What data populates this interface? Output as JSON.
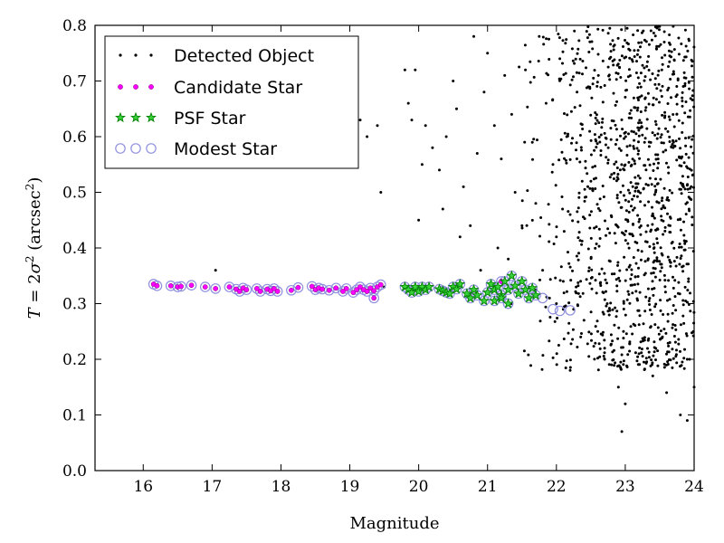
{
  "chart_data": {
    "type": "scatter",
    "title": "",
    "xlabel": "Magnitude",
    "ylabel_parts": {
      "lhs": "T",
      "eq": " = 2",
      "sigma": "σ",
      "sq": "2",
      "unit_open": " (arcsec",
      "unit_sq": "2",
      "unit_close": ")"
    },
    "xlim": [
      15.3,
      24
    ],
    "ylim": [
      0.0,
      0.8
    ],
    "xticks": [
      "16",
      "17",
      "18",
      "19",
      "20",
      "21",
      "22",
      "23",
      "24"
    ],
    "yticks": [
      "0.0",
      "0.1",
      "0.2",
      "0.3",
      "0.4",
      "0.5",
      "0.6",
      "0.7",
      "0.8"
    ],
    "legend_position": "upper-left",
    "colors": {
      "detected": "#000000",
      "candidate": "#ff00ff",
      "psf": "#008000",
      "modest": "#8f8fdf"
    },
    "series": [
      {
        "name": "Detected Object",
        "marker": "dot",
        "color": "#000000",
        "generated_count": 1200
      },
      {
        "name": "Candidate Star",
        "marker": "circle",
        "color": "#ff00ff"
      },
      {
        "name": "PSF Star",
        "marker": "star",
        "color": "#008000"
      },
      {
        "name": "Modest Star",
        "marker": "open-circle",
        "color": "#8f8fdf"
      }
    ],
    "detected_sparse_points": [
      [
        17.05,
        0.36
      ],
      [
        21.35,
        0.3
      ],
      [
        22.0,
        0.3
      ],
      [
        22.1,
        0.29
      ],
      [
        22.2,
        0.18
      ],
      [
        19.15,
        0.63
      ],
      [
        19.25,
        0.6
      ],
      [
        19.4,
        0.62
      ],
      [
        19.45,
        0.5
      ],
      [
        19.5,
        0.33
      ],
      [
        19.8,
        0.72
      ],
      [
        19.85,
        0.66
      ],
      [
        19.9,
        0.63
      ],
      [
        19.95,
        0.72
      ],
      [
        20.0,
        0.45
      ],
      [
        20.05,
        0.55
      ],
      [
        20.1,
        0.62
      ],
      [
        20.2,
        0.58
      ],
      [
        20.3,
        0.54
      ],
      [
        20.35,
        0.47
      ],
      [
        20.4,
        0.6
      ],
      [
        20.5,
        0.7
      ],
      [
        20.55,
        0.65
      ],
      [
        20.6,
        0.42
      ],
      [
        20.65,
        0.51
      ],
      [
        20.75,
        0.44
      ],
      [
        20.8,
        0.78
      ],
      [
        20.85,
        0.57
      ],
      [
        20.9,
        0.36
      ],
      [
        20.95,
        0.68
      ],
      [
        21.0,
        0.75
      ],
      [
        21.1,
        0.62
      ],
      [
        21.15,
        0.4
      ],
      [
        21.2,
        0.56
      ],
      [
        21.25,
        0.71
      ],
      [
        21.3,
        0.38
      ],
      [
        21.35,
        0.64
      ],
      [
        21.4,
        0.5
      ],
      [
        21.5,
        0.44
      ],
      [
        21.55,
        0.72
      ],
      [
        21.6,
        0.33
      ],
      [
        21.65,
        0.59
      ],
      [
        21.7,
        0.48
      ],
      [
        21.75,
        0.78
      ],
      [
        21.8,
        0.36
      ],
      [
        21.85,
        0.66
      ],
      [
        21.9,
        0.31
      ],
      [
        21.95,
        0.55
      ],
      [
        22.0,
        0.42
      ],
      [
        22.05,
        0.74
      ],
      [
        22.1,
        0.34
      ],
      [
        22.15,
        0.6
      ],
      [
        22.2,
        0.46
      ],
      [
        22.25,
        0.29
      ],
      [
        22.3,
        0.68
      ],
      [
        22.4,
        0.27
      ],
      [
        22.5,
        0.52
      ],
      [
        22.6,
        0.25
      ],
      [
        22.7,
        0.22
      ],
      [
        22.8,
        0.19
      ],
      [
        22.9,
        0.15
      ],
      [
        22.95,
        0.07
      ],
      [
        23.0,
        0.12
      ],
      [
        23.2,
        0.21
      ],
      [
        23.4,
        0.17
      ],
      [
        23.6,
        0.14
      ],
      [
        23.8,
        0.1
      ],
      [
        23.9,
        0.09
      ],
      [
        24.0,
        0.15
      ],
      [
        23.9,
        0.2
      ]
    ],
    "dense_region": {
      "x_range": [
        21.3,
        24.0
      ],
      "y_range": [
        0.18,
        0.8
      ]
    },
    "candidate_points": [
      [
        16.15,
        0.335
      ],
      [
        16.2,
        0.332
      ],
      [
        16.4,
        0.332
      ],
      [
        16.5,
        0.33
      ],
      [
        16.55,
        0.331
      ],
      [
        16.7,
        0.333
      ],
      [
        16.9,
        0.33
      ],
      [
        17.05,
        0.327
      ],
      [
        17.25,
        0.33
      ],
      [
        17.35,
        0.326
      ],
      [
        17.4,
        0.322
      ],
      [
        17.45,
        0.328
      ],
      [
        17.5,
        0.325
      ],
      [
        17.65,
        0.327
      ],
      [
        17.7,
        0.322
      ],
      [
        17.8,
        0.326
      ],
      [
        17.85,
        0.323
      ],
      [
        17.9,
        0.327
      ],
      [
        17.95,
        0.322
      ],
      [
        18.15,
        0.324
      ],
      [
        18.25,
        0.329
      ],
      [
        18.45,
        0.331
      ],
      [
        18.5,
        0.325
      ],
      [
        18.55,
        0.328
      ],
      [
        18.6,
        0.326
      ],
      [
        18.7,
        0.324
      ],
      [
        18.8,
        0.328
      ],
      [
        18.9,
        0.322
      ],
      [
        18.95,
        0.327
      ],
      [
        19.05,
        0.32
      ],
      [
        19.1,
        0.325
      ],
      [
        19.15,
        0.33
      ],
      [
        19.2,
        0.325
      ],
      [
        19.25,
        0.322
      ],
      [
        19.3,
        0.328
      ],
      [
        19.35,
        0.323
      ],
      [
        19.4,
        0.33
      ],
      [
        19.35,
        0.31
      ],
      [
        19.45,
        0.334
      ],
      [
        21.2,
        0.34
      ]
    ],
    "psf_points": [
      [
        19.8,
        0.33
      ],
      [
        19.85,
        0.325
      ],
      [
        19.9,
        0.32
      ],
      [
        19.95,
        0.33
      ],
      [
        20.0,
        0.322
      ],
      [
        20.05,
        0.33
      ],
      [
        20.1,
        0.325
      ],
      [
        20.15,
        0.33
      ],
      [
        20.3,
        0.326
      ],
      [
        20.35,
        0.323
      ],
      [
        20.4,
        0.32
      ],
      [
        20.45,
        0.318
      ],
      [
        20.5,
        0.33
      ],
      [
        20.55,
        0.326
      ],
      [
        20.6,
        0.335
      ],
      [
        20.7,
        0.318
      ],
      [
        20.75,
        0.31
      ],
      [
        20.8,
        0.325
      ],
      [
        20.85,
        0.315
      ],
      [
        20.95,
        0.305
      ],
      [
        21.0,
        0.32
      ],
      [
        21.05,
        0.335
      ],
      [
        21.1,
        0.325
      ],
      [
        21.15,
        0.33
      ],
      [
        21.2,
        0.315
      ],
      [
        21.25,
        0.34
      ],
      [
        21.3,
        0.325
      ],
      [
        21.35,
        0.35
      ],
      [
        21.4,
        0.332
      ],
      [
        21.45,
        0.318
      ],
      [
        21.5,
        0.34
      ],
      [
        21.55,
        0.325
      ],
      [
        21.6,
        0.31
      ],
      [
        21.65,
        0.328
      ],
      [
        21.7,
        0.315
      ],
      [
        21.1,
        0.305
      ],
      [
        21.2,
        0.31
      ],
      [
        21.3,
        0.3
      ]
    ],
    "modest_extra_points": [
      [
        21.8,
        0.31
      ],
      [
        21.95,
        0.29
      ],
      [
        22.05,
        0.287
      ],
      [
        22.2,
        0.288
      ],
      [
        21.3,
        0.3
      ]
    ]
  }
}
